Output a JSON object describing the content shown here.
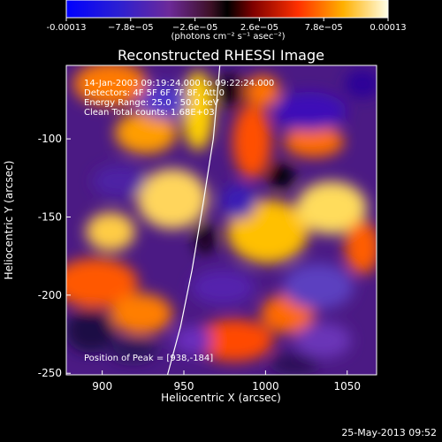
{
  "chart_data": {
    "type": "heatmap",
    "title": "Reconstructed RHESSI Image",
    "xlabel": "Heliocentric X (arcsec)",
    "ylabel": "Heliocentric Y (arcsec)",
    "xlim": [
      878,
      1068
    ],
    "ylim": [
      -251,
      -53
    ],
    "x_ticks": [
      900,
      950,
      1000,
      1050
    ],
    "y_ticks": [
      -100,
      -150,
      -200,
      -250
    ],
    "colorbar": {
      "ticks": [
        "-0.00013",
        "−7.8e−05",
        "−2.6e−05",
        "2.6e−05",
        "7.8e−05",
        "0.00013"
      ],
      "unit": "(photons cm⁻² s⁻¹ asec⁻²)",
      "min": -0.00013,
      "max": 0.00013
    },
    "annotations": [
      "14-Jan-2003 09:19:24.000 to 09:22:24.000",
      "Detectors: 4F 5F 6F 7F 8F, Att 0",
      "Energy Range: 25.0 - 50.0 keV",
      "Clean    Total counts: 1.68E+03"
    ],
    "peak_label": "Position of Peak = [938,-184]",
    "peak_position": [
      938,
      -184
    ],
    "limb_curve": [
      {
        "x": 940,
        "y": -251
      },
      {
        "x": 948,
        "y": -220
      },
      {
        "x": 955,
        "y": -184
      },
      {
        "x": 962,
        "y": -140
      },
      {
        "x": 968,
        "y": -100
      },
      {
        "x": 972,
        "y": -53
      }
    ],
    "grid": false,
    "legend": "none"
  },
  "footer": {
    "date": "25-May-2013 09:52"
  }
}
